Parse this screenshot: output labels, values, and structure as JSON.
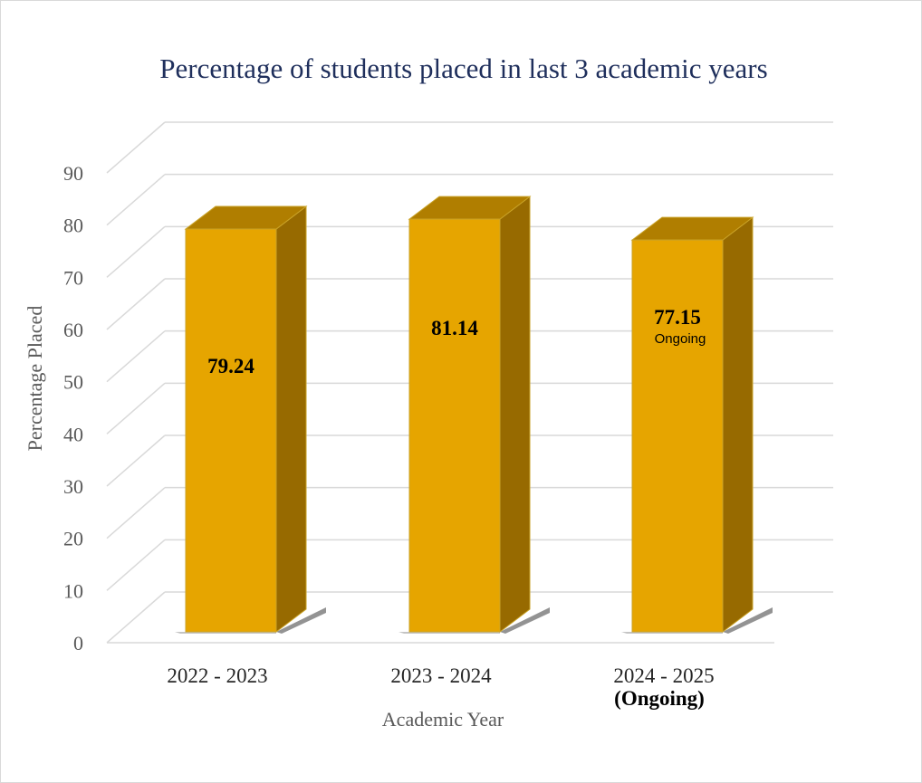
{
  "chart_data": {
    "type": "bar",
    "title": "Percentage of students placed in last 3 academic years",
    "xlabel": "Academic Year",
    "ylabel": "Percentage Placed",
    "categories": [
      "2022 - 2023",
      "2023 - 2024",
      "2024 - 2025"
    ],
    "category_sublabels": [
      "",
      "",
      "(Ongoing)"
    ],
    "values": [
      79.24,
      81.14,
      77.15
    ],
    "value_labels": [
      "79.24",
      "81.14",
      "77.15"
    ],
    "value_notes": [
      "",
      "",
      "Ongoing"
    ],
    "ylim": [
      0,
      90
    ],
    "yticks": [
      "0",
      "10",
      "20",
      "30",
      "40",
      "50",
      "60",
      "70",
      "80",
      "90"
    ],
    "grid": true,
    "legend": "none",
    "style": "3d-column"
  },
  "colors": {
    "bar_front": "#e6a500",
    "bar_top": "#b07e00",
    "bar_side": "#976a00",
    "bar_edge": "#c9a227",
    "grid": "#d9d9d9",
    "title": "#1f2f5c"
  }
}
